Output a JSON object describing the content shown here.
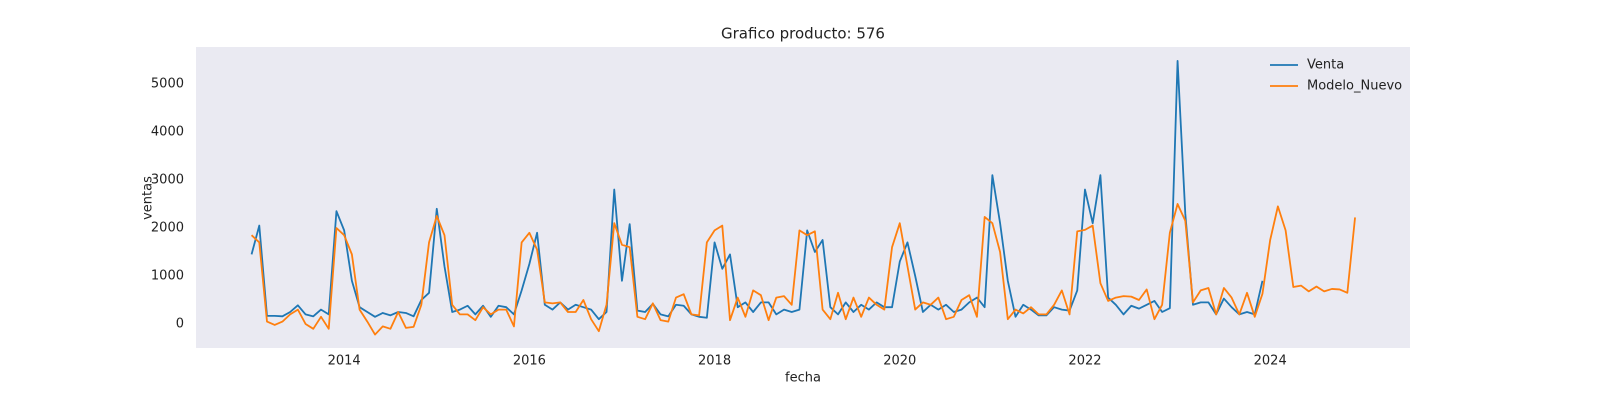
{
  "chart_data": {
    "type": "line",
    "title": "Grafico producto: 576",
    "x_label": "fecha",
    "y_label": "ventas",
    "x": [
      "2013-01",
      "2013-02",
      "2013-03",
      "2013-04",
      "2013-05",
      "2013-06",
      "2013-07",
      "2013-08",
      "2013-09",
      "2013-10",
      "2013-11",
      "2013-12",
      "2014-01",
      "2014-02",
      "2014-03",
      "2014-04",
      "2014-05",
      "2014-06",
      "2014-07",
      "2014-08",
      "2014-09",
      "2014-10",
      "2014-11",
      "2014-12",
      "2015-01",
      "2015-02",
      "2015-03",
      "2015-04",
      "2015-05",
      "2015-06",
      "2015-07",
      "2015-08",
      "2015-09",
      "2015-10",
      "2015-11",
      "2015-12",
      "2016-01",
      "2016-02",
      "2016-03",
      "2016-04",
      "2016-05",
      "2016-06",
      "2016-07",
      "2016-08",
      "2016-09",
      "2016-10",
      "2016-11",
      "2016-12",
      "2017-01",
      "2017-02",
      "2017-03",
      "2017-04",
      "2017-05",
      "2017-06",
      "2017-07",
      "2017-08",
      "2017-09",
      "2017-10",
      "2017-11",
      "2017-12",
      "2018-01",
      "2018-02",
      "2018-03",
      "2018-04",
      "2018-05",
      "2018-06",
      "2018-07",
      "2018-08",
      "2018-09",
      "2018-10",
      "2018-11",
      "2018-12",
      "2019-01",
      "2019-02",
      "2019-03",
      "2019-04",
      "2019-05",
      "2019-06",
      "2019-07",
      "2019-08",
      "2019-09",
      "2019-10",
      "2019-11",
      "2019-12",
      "2020-01",
      "2020-02",
      "2020-03",
      "2020-04",
      "2020-05",
      "2020-06",
      "2020-07",
      "2020-08",
      "2020-09",
      "2020-10",
      "2020-11",
      "2020-12",
      "2021-01",
      "2021-02",
      "2021-03",
      "2021-04",
      "2021-05",
      "2021-06",
      "2021-07",
      "2021-08",
      "2021-09",
      "2021-10",
      "2021-11",
      "2021-12",
      "2022-01",
      "2022-02",
      "2022-03",
      "2022-04",
      "2022-05",
      "2022-06",
      "2022-07",
      "2022-08",
      "2022-09",
      "2022-10",
      "2022-11",
      "2022-12",
      "2023-01",
      "2023-02",
      "2023-03",
      "2023-04",
      "2023-05",
      "2023-06",
      "2023-07",
      "2023-08",
      "2023-09",
      "2023-10",
      "2023-11",
      "2023-12",
      "2024-01",
      "2024-02",
      "2024-03",
      "2024-04",
      "2024-05",
      "2024-06",
      "2024-07",
      "2024-08",
      "2024-09",
      "2024-10",
      "2024-11",
      "2024-12"
    ],
    "series": [
      {
        "name": "Venta",
        "color": "#1f77b4",
        "values": [
          1450,
          2050,
          170,
          170,
          160,
          250,
          390,
          200,
          160,
          300,
          200,
          2350,
          1950,
          900,
          350,
          250,
          150,
          230,
          180,
          250,
          230,
          160,
          500,
          650,
          2400,
          1200,
          250,
          300,
          380,
          200,
          380,
          150,
          380,
          350,
          200,
          700,
          1250,
          1900,
          400,
          300,
          450,
          300,
          400,
          350,
          300,
          100,
          250,
          2800,
          900,
          2080,
          280,
          250,
          420,
          200,
          160,
          400,
          380,
          200,
          150,
          130,
          1700,
          1150,
          1450,
          350,
          450,
          250,
          450,
          450,
          200,
          300,
          250,
          300,
          1950,
          1500,
          1750,
          350,
          200,
          450,
          250,
          400,
          300,
          450,
          350,
          350,
          1300,
          1700,
          1000,
          250,
          400,
          300,
          400,
          250,
          300,
          450,
          550,
          350,
          3100,
          2100,
          900,
          150,
          400,
          300,
          180,
          180,
          350,
          300,
          280,
          700,
          2800,
          2100,
          3100,
          550,
          400,
          200,
          380,
          320,
          400,
          480,
          250,
          330,
          5480,
          2300,
          400,
          450,
          450,
          200,
          530,
          350,
          200,
          250,
          200,
          900,
          null,
          null,
          null,
          null,
          null,
          null,
          null,
          null,
          null,
          null,
          null,
          null
        ]
      },
      {
        "name": "Modelo_Nuevo",
        "color": "#ff7f0e",
        "values": [
          1850,
          1700,
          50,
          -20,
          50,
          200,
          300,
          0,
          -100,
          150,
          -100,
          2000,
          1850,
          1450,
          300,
          50,
          -220,
          -50,
          -100,
          250,
          -80,
          -60,
          400,
          1700,
          2250,
          1850,
          400,
          200,
          200,
          80,
          350,
          200,
          300,
          300,
          -50,
          1700,
          1900,
          1550,
          450,
          430,
          450,
          250,
          250,
          500,
          100,
          -150,
          400,
          2100,
          1650,
          1600,
          150,
          100,
          430,
          80,
          50,
          550,
          620,
          200,
          180,
          1700,
          1950,
          2050,
          80,
          550,
          150,
          700,
          600,
          80,
          550,
          580,
          400,
          1950,
          1850,
          1930,
          300,
          100,
          650,
          100,
          550,
          150,
          550,
          400,
          300,
          1600,
          2100,
          1200,
          300,
          450,
          400,
          550,
          100,
          150,
          500,
          600,
          150,
          2230,
          2100,
          1500,
          100,
          300,
          220,
          350,
          200,
          200,
          400,
          700,
          200,
          1930,
          1960,
          2050,
          850,
          480,
          550,
          580,
          570,
          500,
          720,
          100,
          400,
          1900,
          2500,
          2150,
          450,
          700,
          750,
          200,
          750,
          550,
          200,
          650,
          150,
          630,
          1750,
          2450,
          1950,
          770,
          800,
          680,
          780,
          680,
          730,
          720,
          650,
          2220
        ]
      }
    ],
    "xlim": [
      2012.4,
      2025.51
    ],
    "xticks": [
      2014,
      2016,
      2018,
      2020,
      2022,
      2024
    ],
    "ylim": [
      -500,
      5770
    ],
    "yticks": [
      0,
      1000,
      2000,
      3000,
      4000,
      5000
    ],
    "legend": "upper right",
    "grid": false
  }
}
